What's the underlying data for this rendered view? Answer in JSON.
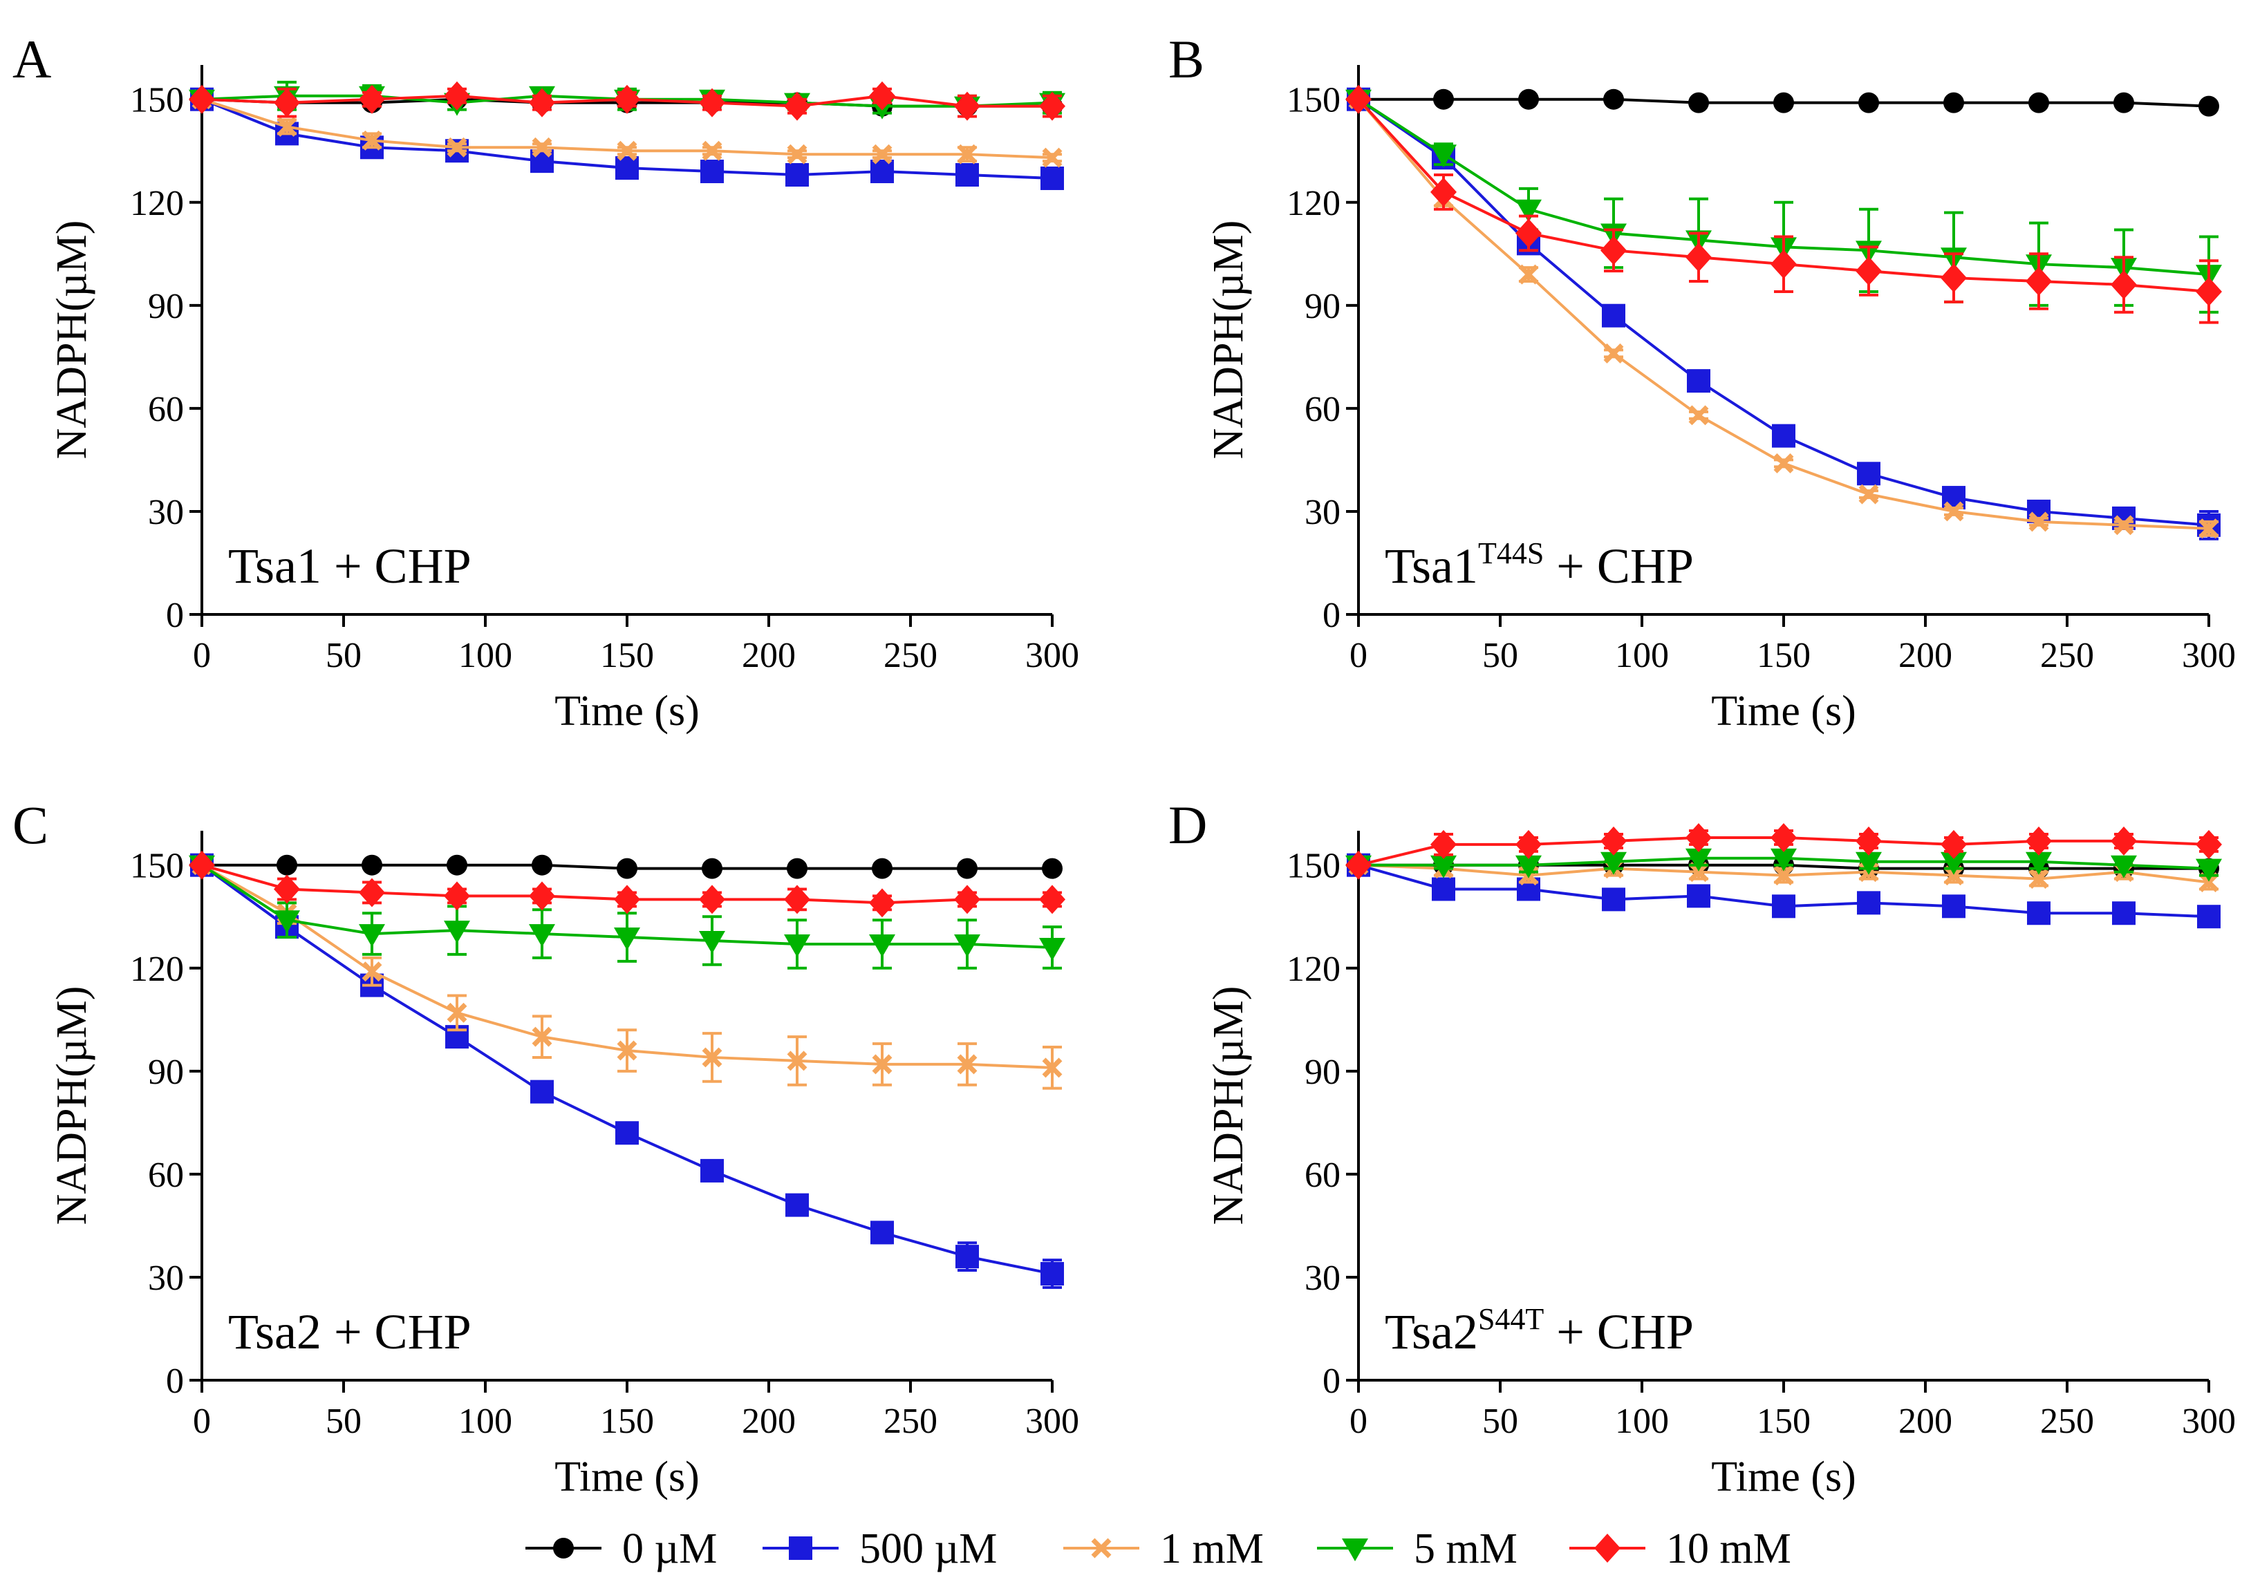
{
  "series_meta": [
    {
      "key": "s0",
      "name": "0 µM",
      "color": "#000000",
      "marker": "circle"
    },
    {
      "key": "s500",
      "name": "500 µM",
      "color": "#1a1adb",
      "marker": "square"
    },
    {
      "key": "s1",
      "name": "1 mM",
      "color": "#f5a55a",
      "marker": "x"
    },
    {
      "key": "s5",
      "name": "5 mM",
      "color": "#00b300",
      "marker": "triangle-down"
    },
    {
      "key": "s10",
      "name": "10 mM",
      "color": "#ff1a1a",
      "marker": "diamond"
    }
  ],
  "chart_data": [
    {
      "type": "line",
      "panel": "A",
      "title": "",
      "annotation": {
        "base": "Tsa1",
        "sup": "",
        "rest": " + CHP"
      },
      "xlabel": "Time (s)",
      "ylabel": "NADPH(µM)",
      "xlim": [
        0,
        300
      ],
      "ylim": [
        0,
        160
      ],
      "xticks": [
        0,
        50,
        100,
        150,
        200,
        250,
        300
      ],
      "yticks": [
        0,
        30,
        60,
        90,
        120,
        150
      ],
      "x": [
        0,
        30,
        60,
        90,
        120,
        150,
        180,
        210,
        240,
        270,
        300
      ],
      "series": [
        {
          "name": "0 µM",
          "values": [
            150,
            149,
            149,
            150,
            149,
            149,
            149,
            149,
            148,
            148,
            148
          ],
          "err": [
            0,
            1,
            1,
            1,
            1,
            1,
            1,
            1,
            1,
            1,
            1
          ]
        },
        {
          "name": "500 µM",
          "values": [
            150,
            140,
            136,
            135,
            132,
            130,
            129,
            128,
            129,
            128,
            127
          ],
          "err": [
            0,
            2,
            2,
            2,
            2,
            2,
            2,
            2,
            2,
            2,
            2
          ]
        },
        {
          "name": "1 mM",
          "values": [
            150,
            142,
            138,
            136,
            136,
            135,
            135,
            134,
            134,
            134,
            133
          ],
          "err": [
            0,
            2,
            2,
            1,
            1,
            1,
            1,
            1,
            1,
            2,
            1
          ]
        },
        {
          "name": "5 mM",
          "values": [
            150,
            151,
            151,
            149,
            151,
            150,
            150,
            149,
            148,
            148,
            149
          ],
          "err": [
            0,
            4,
            3,
            2,
            2,
            3,
            2,
            2,
            2,
            3,
            3
          ]
        },
        {
          "name": "10 mM",
          "values": [
            150,
            149,
            150,
            151,
            149,
            150,
            149,
            148,
            151,
            148,
            148
          ],
          "err": [
            0,
            4,
            2,
            2,
            2,
            2,
            2,
            2,
            2,
            3,
            3
          ]
        }
      ]
    },
    {
      "type": "line",
      "panel": "B",
      "title": "",
      "annotation": {
        "base": "Tsa1",
        "sup": "T44S",
        "rest": " + CHP"
      },
      "xlabel": "Time (s)",
      "ylabel": "NADPH(µM)",
      "xlim": [
        0,
        300
      ],
      "ylim": [
        0,
        160
      ],
      "xticks": [
        0,
        50,
        100,
        150,
        200,
        250,
        300
      ],
      "yticks": [
        0,
        30,
        60,
        90,
        120,
        150
      ],
      "x": [
        0,
        30,
        60,
        90,
        120,
        150,
        180,
        210,
        240,
        270,
        300
      ],
      "series": [
        {
          "name": "0 µM",
          "values": [
            150,
            150,
            150,
            150,
            149,
            149,
            149,
            149,
            149,
            149,
            148
          ],
          "err": [
            0,
            0,
            0,
            0,
            0,
            0,
            0,
            0,
            0,
            0,
            0
          ]
        },
        {
          "name": "500 µM",
          "values": [
            150,
            133,
            108,
            87,
            68,
            52,
            41,
            34,
            30,
            28,
            26
          ],
          "err": [
            0,
            3,
            2,
            2,
            2,
            2,
            2,
            2,
            2,
            3,
            4
          ]
        },
        {
          "name": "1 mM",
          "values": [
            150,
            121,
            99,
            76,
            58,
            44,
            35,
            30,
            27,
            26,
            25
          ],
          "err": [
            0,
            2,
            2,
            1,
            1,
            1,
            1,
            1,
            1,
            1,
            2
          ]
        },
        {
          "name": "5 mM",
          "values": [
            150,
            134,
            118,
            111,
            109,
            107,
            106,
            104,
            102,
            101,
            99
          ],
          "err": [
            0,
            3,
            6,
            10,
            12,
            13,
            12,
            13,
            12,
            11,
            11
          ]
        },
        {
          "name": "10 mM",
          "values": [
            150,
            123,
            111,
            106,
            104,
            102,
            100,
            98,
            97,
            96,
            94
          ],
          "err": [
            0,
            5,
            5,
            6,
            7,
            8,
            7,
            7,
            8,
            8,
            9
          ]
        }
      ]
    },
    {
      "type": "line",
      "panel": "C",
      "title": "",
      "annotation": {
        "base": "Tsa2",
        "sup": "",
        "rest": " + CHP"
      },
      "xlabel": "Time (s)",
      "ylabel": "NADPH(µM)",
      "xlim": [
        0,
        300
      ],
      "ylim": [
        0,
        160
      ],
      "xticks": [
        0,
        50,
        100,
        150,
        200,
        250,
        300
      ],
      "yticks": [
        0,
        30,
        60,
        90,
        120,
        150
      ],
      "x": [
        0,
        30,
        60,
        90,
        120,
        150,
        180,
        210,
        240,
        270,
        300
      ],
      "series": [
        {
          "name": "0 µM",
          "values": [
            150,
            150,
            150,
            150,
            150,
            149,
            149,
            149,
            149,
            149,
            149
          ],
          "err": [
            0,
            0,
            0,
            0,
            0,
            0,
            0,
            0,
            0,
            0,
            0
          ]
        },
        {
          "name": "500 µM",
          "values": [
            150,
            132,
            115,
            100,
            84,
            72,
            61,
            51,
            43,
            36,
            31
          ],
          "err": [
            0,
            3,
            2,
            2,
            2,
            2,
            2,
            2,
            3,
            4,
            4
          ]
        },
        {
          "name": "1 mM",
          "values": [
            150,
            136,
            119,
            107,
            100,
            96,
            94,
            93,
            92,
            92,
            91
          ],
          "err": [
            0,
            3,
            4,
            5,
            6,
            6,
            7,
            7,
            6,
            6,
            6
          ]
        },
        {
          "name": "5 mM",
          "values": [
            150,
            134,
            130,
            131,
            130,
            129,
            128,
            127,
            127,
            127,
            126
          ],
          "err": [
            0,
            5,
            6,
            7,
            7,
            7,
            7,
            7,
            7,
            7,
            6
          ]
        },
        {
          "name": "10 mM",
          "values": [
            150,
            143,
            142,
            141,
            141,
            140,
            140,
            140,
            139,
            140,
            140
          ],
          "err": [
            0,
            3,
            3,
            2,
            2,
            2,
            2,
            3,
            2,
            2,
            2
          ]
        }
      ]
    },
    {
      "type": "line",
      "panel": "D",
      "title": "",
      "annotation": {
        "base": "Tsa2",
        "sup": "S44T",
        "rest": " + CHP"
      },
      "xlabel": "Time (s)",
      "ylabel": "NADPH(µM)",
      "xlim": [
        0,
        300
      ],
      "ylim": [
        0,
        160
      ],
      "xticks": [
        0,
        50,
        100,
        150,
        200,
        250,
        300
      ],
      "yticks": [
        0,
        30,
        60,
        90,
        120,
        150
      ],
      "x": [
        0,
        30,
        60,
        90,
        120,
        150,
        180,
        210,
        240,
        270,
        300
      ],
      "series": [
        {
          "name": "0 µM",
          "values": [
            150,
            150,
            150,
            150,
            150,
            150,
            149,
            149,
            149,
            149,
            149
          ],
          "err": [
            0,
            0,
            0,
            0,
            0,
            0,
            0,
            0,
            0,
            0,
            0
          ]
        },
        {
          "name": "500 µM",
          "values": [
            150,
            143,
            143,
            140,
            141,
            138,
            139,
            138,
            136,
            136,
            135
          ],
          "err": [
            0,
            2,
            2,
            2,
            2,
            2,
            2,
            2,
            2,
            2,
            2
          ]
        },
        {
          "name": "1 mM",
          "values": [
            150,
            149,
            147,
            149,
            148,
            147,
            148,
            147,
            146,
            148,
            145
          ],
          "err": [
            0,
            2,
            2,
            2,
            2,
            2,
            2,
            2,
            2,
            2,
            2
          ]
        },
        {
          "name": "5 mM",
          "values": [
            150,
            150,
            150,
            151,
            152,
            152,
            151,
            151,
            151,
            150,
            149
          ],
          "err": [
            0,
            1,
            2,
            2,
            2,
            2,
            2,
            2,
            2,
            2,
            2
          ]
        },
        {
          "name": "10 mM",
          "values": [
            150,
            156,
            156,
            157,
            158,
            158,
            157,
            156,
            157,
            157,
            156
          ],
          "err": [
            0,
            3,
            2,
            2,
            2,
            2,
            2,
            2,
            2,
            2,
            2
          ]
        }
      ]
    }
  ]
}
